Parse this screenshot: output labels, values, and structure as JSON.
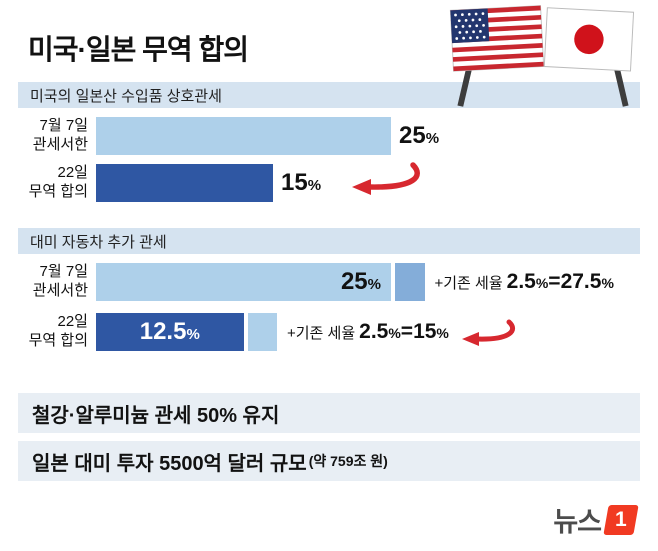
{
  "page": {
    "title": "미국·일본 무역 합의",
    "logo": {
      "prefix": "뉴스",
      "one": "1"
    }
  },
  "colors": {
    "light_bar": "#aed0ea",
    "dark_bar": "#2f57a3",
    "medium_segment": "#84add9",
    "section_bg": "#d5e3f0",
    "note_bg": "#e8eef4",
    "arrow_red": "#d7282f",
    "logo_red": "#f13a22",
    "japan_sun": "#d0121b",
    "us_canton": "#23366e",
    "us_stripe": "#c8272f"
  },
  "chart_data": [
    {
      "type": "bar",
      "title": "미국의 일본산 수입품 상호관세",
      "unit": "%",
      "xlim": [
        0,
        45
      ],
      "rows": [
        {
          "label": "7월 7일\n관세서한",
          "value": 25
        },
        {
          "label": "22일\n무역 합의",
          "value": 15,
          "highlight": "red-arrow"
        }
      ]
    },
    {
      "type": "stacked-bar",
      "title": "대미 자동차 추가 관세",
      "unit": "%",
      "xlim": [
        0,
        45
      ],
      "rows": [
        {
          "label": "7월 7일\n관세서한",
          "value": 25,
          "extra": 2.5,
          "total": 27.5,
          "ann_prefix": "+기존 세율",
          "ann_base": 2.5,
          "ann_eq": "=",
          "ann_total": 27.5
        },
        {
          "label": "22일\n무역 합의",
          "value": 12.5,
          "extra": 2.5,
          "total": 15,
          "ann_prefix": "+기존 세율",
          "ann_base": 2.5,
          "ann_eq": "=",
          "ann_total": 15,
          "highlight": "red-arrow"
        }
      ]
    }
  ],
  "notes": [
    {
      "text": "철강·알루미늄 관세 50% 유지"
    },
    {
      "text": "일본 대미 투자 5500억 달러 규모",
      "sub": "(약 759조 원)"
    }
  ]
}
